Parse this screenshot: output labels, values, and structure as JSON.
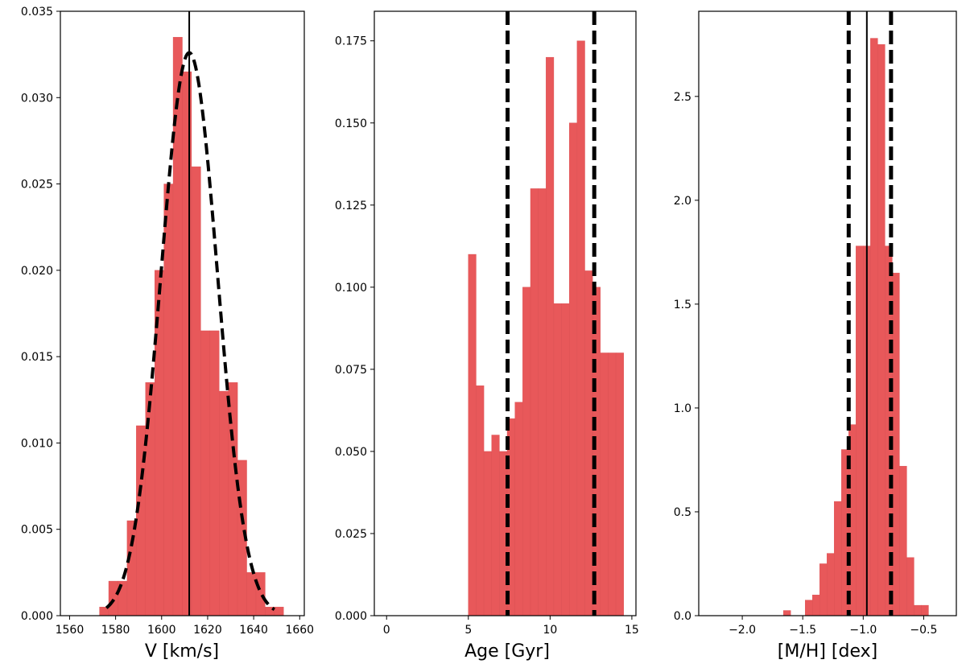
{
  "chart_data": [
    {
      "type": "bar",
      "xlabel": "V [km/s]",
      "ylabel": "",
      "xlim": [
        1556,
        1662
      ],
      "ylim": [
        0,
        0.035
      ],
      "xticks": [
        1560,
        1580,
        1600,
        1620,
        1640,
        1660
      ],
      "yticks": [
        0.0,
        0.005,
        0.01,
        0.015,
        0.02,
        0.025,
        0.03,
        0.035
      ],
      "ytick_labels": [
        "0.000",
        "0.005",
        "0.010",
        "0.015",
        "0.020",
        "0.025",
        "0.030",
        "0.035"
      ],
      "bar_color": "#e8585a",
      "bin_edges": [
        1573,
        1577,
        1581,
        1585,
        1589,
        1593,
        1597,
        1601,
        1605,
        1609,
        1613,
        1617,
        1621,
        1625,
        1629,
        1633,
        1637,
        1641,
        1645,
        1649,
        1653
      ],
      "values": [
        0.0005,
        0.002,
        0.002,
        0.0055,
        0.011,
        0.0135,
        0.02,
        0.025,
        0.0335,
        0.0315,
        0.026,
        0.0165,
        0.0165,
        0.013,
        0.0135,
        0.009,
        0.0025,
        0.0025,
        0.0005,
        0.0005
      ],
      "fit_curve": {
        "style": "dashed",
        "mean": 1612,
        "sigma": 12.3,
        "amplitude": 0.0326,
        "range": [
          1576,
          1649
        ]
      },
      "vlines": [
        {
          "x": 1612,
          "style": "solid"
        }
      ]
    },
    {
      "type": "bar",
      "xlabel": "Age [Gyr]",
      "ylabel": "",
      "xlim": [
        -0.75,
        15.25
      ],
      "ylim": [
        0,
        0.184
      ],
      "xticks": [
        0,
        5,
        10,
        15
      ],
      "yticks": [
        0.0,
        0.025,
        0.05,
        0.075,
        0.1,
        0.125,
        0.15,
        0.175
      ],
      "ytick_labels": [
        "0.000",
        "0.025",
        "0.050",
        "0.075",
        "0.100",
        "0.125",
        "0.150",
        "0.175"
      ],
      "bar_color": "#e8585a",
      "bin_edges": [
        5.0,
        5.475,
        5.95,
        6.425,
        6.9,
        7.375,
        7.85,
        8.325,
        8.8,
        9.275,
        9.75,
        10.225,
        10.7,
        11.175,
        11.65,
        12.125,
        12.6,
        13.075,
        13.55,
        14.025,
        14.5
      ],
      "values": [
        0.11,
        0.07,
        0.05,
        0.055,
        0.05,
        0.06,
        0.065,
        0.1,
        0.13,
        0.13,
        0.17,
        0.095,
        0.095,
        0.15,
        0.175,
        0.105,
        0.1,
        0.08,
        0.08,
        0.08
      ],
      "vlines": [
        {
          "x": 7.4,
          "style": "dashed"
        },
        {
          "x": 12.7,
          "style": "dashed"
        }
      ]
    },
    {
      "type": "bar",
      "xlabel": "[M/H] [dex]",
      "ylabel": "",
      "xlim": [
        -2.36,
        -0.23
      ],
      "ylim": [
        0,
        2.91
      ],
      "xticks": [
        -2.0,
        -1.5,
        -1.0,
        -0.5
      ],
      "xtick_labels": [
        "−2.0",
        "−1.5",
        "−1.0",
        "−0.5"
      ],
      "yticks": [
        0.0,
        0.5,
        1.0,
        1.5,
        2.0,
        2.5
      ],
      "ytick_labels": [
        "0.0",
        "0.5",
        "1.0",
        "1.5",
        "2.0",
        "2.5"
      ],
      "bar_color": "#e8585a",
      "bin_edges": [
        -1.66,
        -1.6,
        -1.54,
        -1.48,
        -1.42,
        -1.36,
        -1.3,
        -1.24,
        -1.18,
        -1.12,
        -1.06,
        -1.0,
        -0.94,
        -0.88,
        -0.82,
        -0.76,
        -0.7,
        -0.64,
        -0.58,
        -0.52,
        -0.46
      ],
      "values": [
        0.025,
        0.0,
        0.0,
        0.075,
        0.1,
        0.25,
        0.3,
        0.55,
        0.8,
        0.92,
        1.78,
        1.78,
        2.78,
        2.75,
        1.78,
        1.65,
        0.72,
        0.28,
        0.05,
        0.05
      ],
      "vlines": [
        {
          "x": -1.12,
          "style": "dashed"
        },
        {
          "x": -0.97,
          "style": "solid"
        },
        {
          "x": -0.77,
          "style": "dashed"
        }
      ]
    }
  ]
}
